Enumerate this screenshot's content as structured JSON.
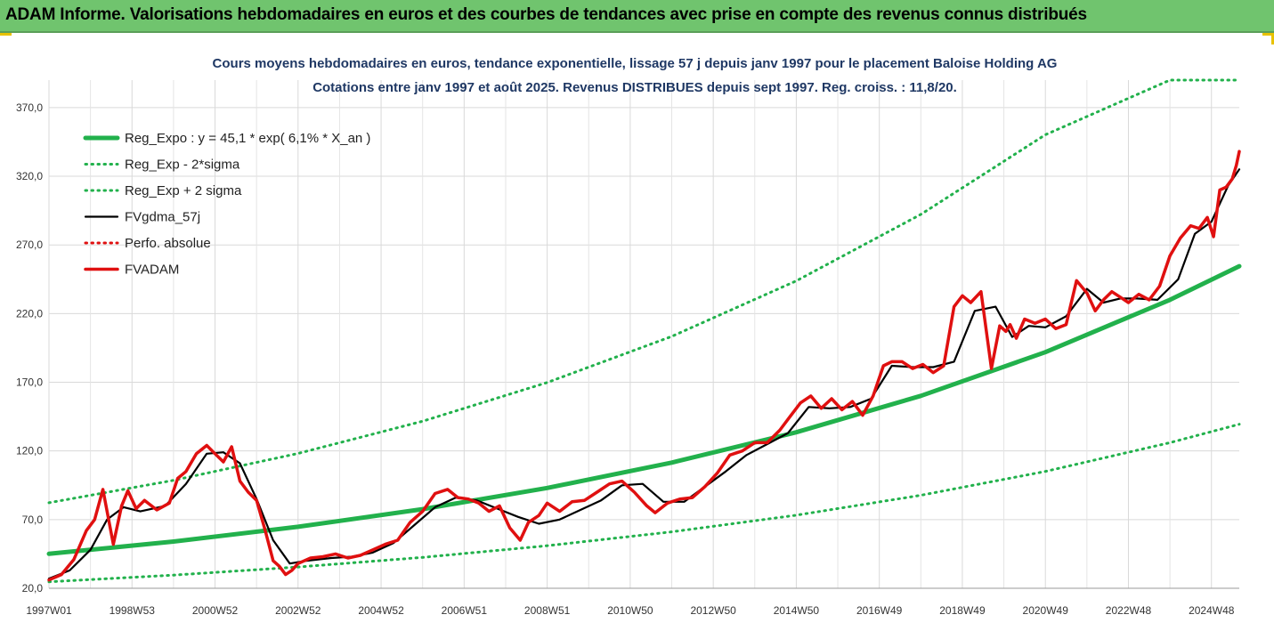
{
  "banner": {
    "title": "ADAM Informe. Valorisations hebdomadaires en euros et des courbes de tendances avec prise en compte des revenus connus distribués"
  },
  "chart_data": {
    "type": "line",
    "title": "Cours moyens hebdomadaires en euros, tendance exponentielle, lissage 57 j depuis janv 1997 pour le placement Baloise Holding AG",
    "subtitle": "Cotations entre janv 1997 et août 2025. Revenus DISTRIBUES depuis sept 1997. Reg. croiss. : 11,8/20.",
    "xlabel": "",
    "ylabel": "",
    "ylim": [
      20,
      390
    ],
    "y_ticks": [
      "20,0",
      "70,0",
      "120,0",
      "170,0",
      "220,0",
      "270,0",
      "320,0",
      "370,0"
    ],
    "x_ticks": [
      "1997W01",
      "1998W53",
      "2000W52",
      "2002W52",
      "2004W52",
      "2006W51",
      "2008W51",
      "2010W50",
      "2012W50",
      "2014W50",
      "2016W49",
      "2018W49",
      "2020W49",
      "2022W48",
      "2024W48"
    ],
    "x_tick_years": [
      1997.0,
      1999.0,
      2001.0,
      2003.0,
      2005.0,
      2007.0,
      2009.0,
      2011.0,
      2013.0,
      2015.0,
      2017.0,
      2019.0,
      2021.0,
      2023.0,
      2025.0
    ],
    "xlim": [
      1997.0,
      2025.67
    ],
    "grid": true,
    "legend_position": "top-left",
    "series": [
      {
        "name": "Reg_Expo : y = 45,1 * exp( 6,1% *  X_an )",
        "color": "#22b14c",
        "style": "solid-thick",
        "x": [
          1997,
          2000,
          2003,
          2006,
          2009,
          2012,
          2015,
          2018,
          2021,
          2024,
          2025.67
        ],
        "values": [
          45.1,
          54.0,
          64.8,
          77.6,
          93.0,
          111.5,
          133.6,
          160.1,
          191.9,
          230.0,
          254.5
        ]
      },
      {
        "name": "Reg_Exp - 2*sigma",
        "color": "#22b14c",
        "style": "dotted",
        "x": [
          1997,
          2000,
          2003,
          2006,
          2009,
          2012,
          2015,
          2018,
          2021,
          2024,
          2025.67
        ],
        "values": [
          24.7,
          29.6,
          35.5,
          42.5,
          51.0,
          61.1,
          73.2,
          87.7,
          105.1,
          126.0,
          139.4
        ]
      },
      {
        "name": "Reg_Exp + 2 sigma",
        "color": "#22b14c",
        "style": "dotted",
        "x": [
          1997,
          2000,
          2003,
          2006,
          2009,
          2012,
          2015,
          2018,
          2021,
          2024,
          2025.67
        ],
        "values": [
          82.3,
          98.6,
          118.2,
          141.6,
          169.8,
          203.4,
          243.8,
          292.2,
          350.2,
          390.0,
          390.0
        ]
      },
      {
        "name": "FVgdma_57j",
        "color": "#000000",
        "style": "solid",
        "x": [
          1997.0,
          1997.5,
          1998.0,
          1998.4,
          1998.8,
          1999.2,
          1999.8,
          2000.3,
          2000.8,
          2001.2,
          2001.6,
          2002.0,
          2002.4,
          2002.8,
          2003.2,
          2003.8,
          2004.3,
          2004.8,
          2005.3,
          2005.8,
          2006.3,
          2006.8,
          2007.3,
          2007.8,
          2008.3,
          2008.8,
          2009.3,
          2009.8,
          2010.3,
          2010.8,
          2011.3,
          2011.8,
          2012.3,
          2012.8,
          2013.3,
          2013.8,
          2014.3,
          2014.8,
          2015.3,
          2015.8,
          2016.3,
          2016.8,
          2017.3,
          2017.8,
          2018.3,
          2018.8,
          2019.3,
          2019.8,
          2020.2,
          2020.6,
          2021.0,
          2021.5,
          2022.0,
          2022.4,
          2022.8,
          2023.2,
          2023.7,
          2024.2,
          2024.6,
          2025.0,
          2025.4,
          2025.67
        ],
        "values": [
          27,
          33,
          48,
          70,
          79,
          76,
          80,
          96,
          118,
          119,
          111,
          85,
          55,
          38,
          40,
          42,
          43,
          46,
          53,
          66,
          79,
          86,
          84,
          78,
          72,
          67,
          70,
          77,
          84,
          95,
          96,
          83,
          83,
          94,
          105,
          117,
          125,
          133,
          152,
          151,
          152,
          158,
          182,
          181,
          181,
          185,
          222,
          225,
          203,
          211,
          210,
          218,
          238,
          228,
          231,
          231,
          230,
          245,
          278,
          287,
          313,
          325
        ]
      },
      {
        "name": "Perfo. absolue",
        "color": "#e01010",
        "style": "dotted",
        "x": [
          1997.0,
          1997.5,
          1998.0,
          1998.4,
          1998.8,
          1999.2,
          1999.8,
          2000.3,
          2000.8,
          2001.2,
          2001.6,
          2002.0,
          2002.4,
          2002.8,
          2003.2,
          2003.8,
          2004.3,
          2004.8,
          2005.3,
          2005.8,
          2006.3,
          2006.8,
          2007.3,
          2007.8,
          2008.3,
          2008.8,
          2009.3,
          2009.8,
          2010.3,
          2010.8,
          2011.3,
          2011.8,
          2012.3,
          2012.8,
          2013.3,
          2013.8,
          2014.3,
          2014.8,
          2015.3,
          2015.8,
          2016.3,
          2016.8,
          2017.3,
          2017.8,
          2018.3,
          2018.8,
          2019.3,
          2019.8,
          2020.2,
          2020.6,
          2021.0,
          2021.5,
          2022.0,
          2022.4,
          2022.8,
          2023.2,
          2023.7,
          2024.2,
          2024.6,
          2025.0,
          2025.4,
          2025.67
        ],
        "values": [
          27,
          33,
          48,
          70,
          79,
          76,
          80,
          96,
          118,
          119,
          111,
          85,
          55,
          38,
          40,
          42,
          43,
          46,
          53,
          66,
          79,
          86,
          84,
          78,
          72,
          67,
          70,
          77,
          84,
          95,
          96,
          83,
          83,
          94,
          105,
          117,
          125,
          133,
          152,
          151,
          152,
          158,
          182,
          181,
          181,
          185,
          222,
          225,
          203,
          211,
          210,
          218,
          238,
          228,
          231,
          231,
          230,
          245,
          278,
          287,
          313,
          325
        ]
      },
      {
        "name": "FVADAM",
        "color": "#e01010",
        "style": "solid-thick",
        "x": [
          1997.0,
          1997.3,
          1997.6,
          1997.9,
          1998.1,
          1998.3,
          1998.55,
          1998.75,
          1998.9,
          1999.1,
          1999.3,
          1999.6,
          1999.9,
          2000.1,
          2000.3,
          2000.55,
          2000.8,
          2001.0,
          2001.2,
          2001.4,
          2001.6,
          2001.8,
          2002.0,
          2002.2,
          2002.4,
          2002.55,
          2002.7,
          2002.85,
          2003.0,
          2003.3,
          2003.6,
          2003.9,
          2004.2,
          2004.5,
          2004.8,
          2005.1,
          2005.4,
          2005.7,
          2006.0,
          2006.3,
          2006.6,
          2006.85,
          2007.1,
          2007.35,
          2007.6,
          2007.85,
          2008.1,
          2008.35,
          2008.55,
          2008.8,
          2009.0,
          2009.3,
          2009.6,
          2009.9,
          2010.2,
          2010.5,
          2010.8,
          2011.1,
          2011.4,
          2011.6,
          2011.9,
          2012.2,
          2012.5,
          2012.8,
          2013.1,
          2013.4,
          2013.7,
          2014.0,
          2014.3,
          2014.6,
          2014.85,
          2015.1,
          2015.35,
          2015.6,
          2015.85,
          2016.1,
          2016.35,
          2016.6,
          2016.85,
          2017.1,
          2017.3,
          2017.55,
          2017.8,
          2018.05,
          2018.3,
          2018.55,
          2018.8,
          2019.0,
          2019.2,
          2019.45,
          2019.7,
          2019.9,
          2020.05,
          2020.15,
          2020.3,
          2020.5,
          2020.75,
          2021.0,
          2021.25,
          2021.5,
          2021.75,
          2022.0,
          2022.2,
          2022.4,
          2022.6,
          2022.8,
          2023.0,
          2023.25,
          2023.5,
          2023.75,
          2024.0,
          2024.25,
          2024.5,
          2024.7,
          2024.9,
          2025.05,
          2025.2,
          2025.35,
          2025.5,
          2025.6,
          2025.67
        ],
        "values": [
          26,
          30,
          41,
          62,
          70,
          92,
          52,
          80,
          91,
          78,
          84,
          77,
          82,
          100,
          105,
          118,
          124,
          118,
          112,
          123,
          98,
          90,
          84,
          63,
          40,
          36,
          30,
          33,
          38,
          42,
          43,
          45,
          42,
          44,
          48,
          52,
          55,
          68,
          76,
          89,
          92,
          86,
          85,
          82,
          76,
          80,
          64,
          55,
          68,
          73,
          82,
          76,
          83,
          84,
          90,
          96,
          98,
          90,
          80,
          75,
          82,
          85,
          86,
          94,
          104,
          117,
          120,
          126,
          126,
          135,
          145,
          155,
          160,
          151,
          158,
          150,
          156,
          146,
          160,
          182,
          185,
          185,
          180,
          183,
          177,
          182,
          225,
          233,
          228,
          236,
          180,
          211,
          207,
          212,
          202,
          216,
          213,
          216,
          209,
          212,
          244,
          235,
          222,
          230,
          236,
          232,
          228,
          234,
          230,
          240,
          262,
          275,
          284,
          282,
          290,
          276,
          310,
          312,
          318,
          328,
          338
        ]
      }
    ]
  }
}
